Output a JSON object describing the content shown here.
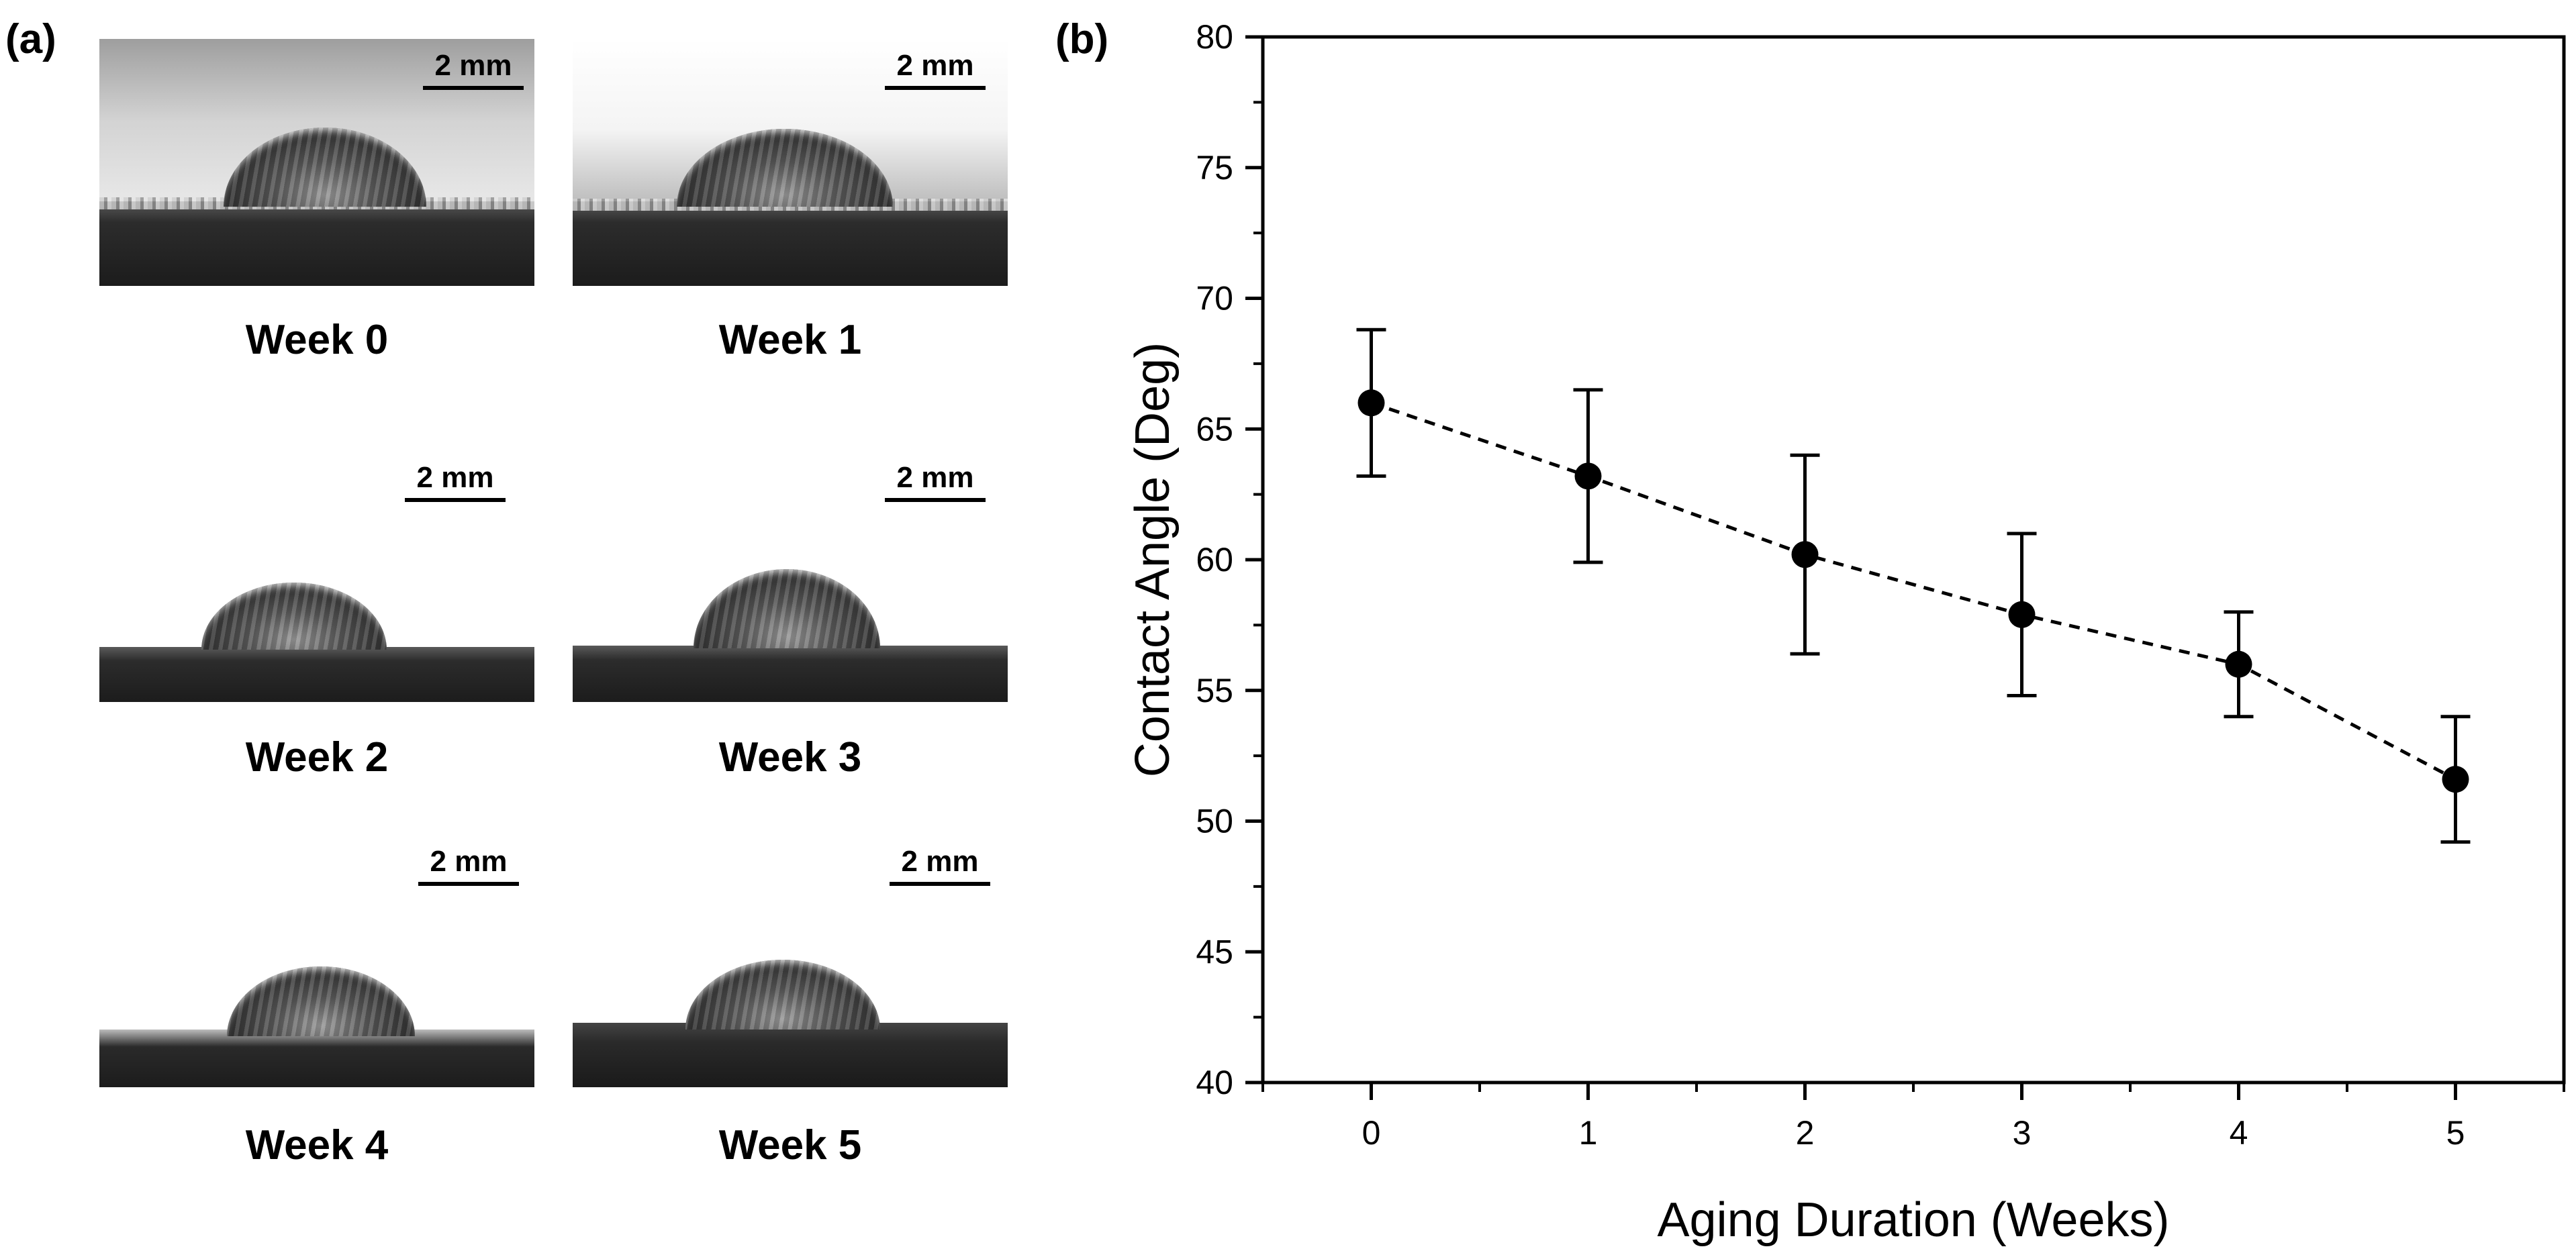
{
  "panel_labels": {
    "a": "(a)",
    "b": "(b)"
  },
  "photos": [
    {
      "caption": "Week 0",
      "scale_bar": "2 mm"
    },
    {
      "caption": "Week 1",
      "scale_bar": "2 mm"
    },
    {
      "caption": "Week 2",
      "scale_bar": "2 mm"
    },
    {
      "caption": "Week 3",
      "scale_bar": "2 mm"
    },
    {
      "caption": "Week 4",
      "scale_bar": "2 mm"
    },
    {
      "caption": "Week 5",
      "scale_bar": "2 mm"
    }
  ],
  "chart_data": {
    "type": "scatter",
    "title": "",
    "xlabel": "Aging Duration (Weeks)",
    "ylabel": "Contact Angle (Deg)",
    "x": [
      0,
      1,
      2,
      3,
      4,
      5
    ],
    "series": [
      {
        "values": [
          66.0,
          63.2,
          60.2,
          57.9,
          56.0,
          51.6
        ],
        "error": [
          2.8,
          3.3,
          3.8,
          3.1,
          2.0,
          2.4
        ],
        "marker": "filled-circle",
        "line": "dashed",
        "color": "#000000"
      }
    ],
    "xlim": [
      -0.5,
      5.5
    ],
    "ylim": [
      40,
      80
    ],
    "xticks": [
      "0",
      "1",
      "2",
      "3",
      "4",
      "5"
    ],
    "yticks": [
      "40",
      "45",
      "50",
      "55",
      "60",
      "65",
      "70",
      "75",
      "80"
    ],
    "grid": false
  }
}
